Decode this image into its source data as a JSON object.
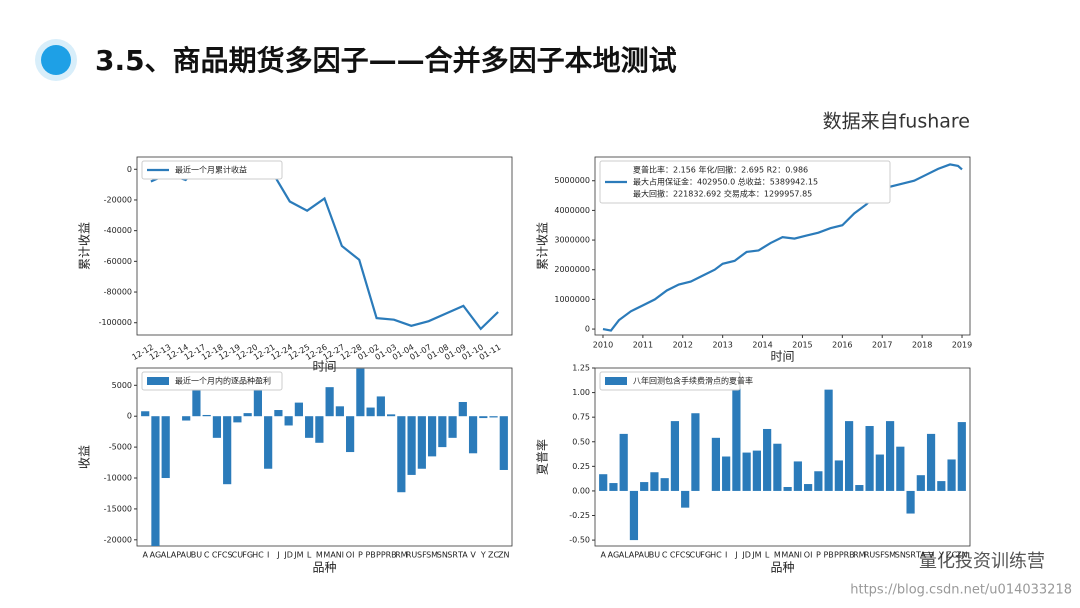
{
  "slide": {
    "title": "3.5、商品期货多因子——合并多因子本地测试",
    "source": "数据来自fushare",
    "watermark": "量化投资训练营",
    "url": "https://blog.csdn.net/u014033218"
  },
  "chart_data": [
    {
      "type": "line",
      "ylabel": "累计收益",
      "xlabel": "时间",
      "categories": [
        "12-12",
        "12-13",
        "12-14",
        "12-17",
        "12-18",
        "12-19",
        "12-20",
        "12-21",
        "12-24",
        "12-25",
        "12-26",
        "12-27",
        "12-28",
        "01-02",
        "01-03",
        "01-04",
        "01-07",
        "01-08",
        "01-09",
        "01-10",
        "01-11"
      ],
      "series": [
        {
          "name": "最近一个月累计收益",
          "color": "#2b7bba",
          "values": [
            -8000,
            -3000,
            -7000,
            5000,
            3000,
            0,
            0,
            -2000,
            -21000,
            -27000,
            -19000,
            -50000,
            -59000,
            -97000,
            -98000,
            -102000,
            -99000,
            -94000,
            -89000,
            -104000,
            -93000
          ]
        }
      ],
      "ylim": [
        -108000,
        8000
      ],
      "yticks": [
        -100000,
        -80000,
        -60000,
        -40000,
        -20000,
        0
      ]
    },
    {
      "type": "line",
      "ylabel": "累计收益",
      "xlabel": "时间",
      "legend_lines": [
        "夏普比率：2.156     年化/回撤：2.695     R2：0.986",
        "最大占用保证金：402950.0    总收益：5389942.15",
        "最大回撤：221832.692      交易成本：1299957.85"
      ],
      "x": [
        2010.0,
        2010.2,
        2010.4,
        2010.7,
        2011.0,
        2011.3,
        2011.6,
        2011.9,
        2012.2,
        2012.5,
        2012.8,
        2013.0,
        2013.3,
        2013.6,
        2013.9,
        2014.2,
        2014.5,
        2014.8,
        2015.1,
        2015.4,
        2015.7,
        2016.0,
        2016.3,
        2016.6,
        2016.9,
        2017.2,
        2017.5,
        2017.8,
        2018.1,
        2018.4,
        2018.7,
        2018.9,
        2019.0
      ],
      "series": [
        {
          "color": "#2b7bba",
          "values": [
            0,
            -50000,
            300000,
            600000,
            800000,
            1000000,
            1300000,
            1500000,
            1600000,
            1800000,
            2000000,
            2200000,
            2300000,
            2600000,
            2650000,
            2900000,
            3100000,
            3050000,
            3150000,
            3250000,
            3400000,
            3500000,
            3900000,
            4200000,
            4600000,
            4800000,
            4900000,
            5000000,
            5200000,
            5400000,
            5550000,
            5500000,
            5380000
          ]
        }
      ],
      "xlim": [
        2009.8,
        2019.2
      ],
      "xticks": [
        2010,
        2011,
        2012,
        2013,
        2014,
        2015,
        2016,
        2017,
        2018,
        2019
      ],
      "ylim": [
        -200000,
        5800000
      ],
      "yticks": [
        0,
        1000000,
        2000000,
        3000000,
        4000000,
        5000000
      ]
    },
    {
      "type": "bar",
      "ylabel": "收益",
      "xlabel": "品种",
      "categories": [
        "A",
        "AG",
        "AL",
        "AP",
        "AU",
        "BU",
        "C",
        "CF",
        "CS",
        "CU",
        "FG",
        "HC",
        "I",
        "J",
        "JD",
        "JM",
        "L",
        "M",
        "MA",
        "NI",
        "OI",
        "P",
        "PB",
        "PP",
        "RB",
        "RM",
        "RU",
        "SF",
        "SM",
        "SN",
        "SR",
        "TA",
        "V",
        "Y",
        "ZC",
        "ZN"
      ],
      "series": [
        {
          "name": "最近一个月内的逐品种盈利",
          "color": "#2b7bba",
          "values": [
            800,
            -21000,
            -10000,
            0,
            -700,
            5000,
            200,
            -3500,
            -11000,
            -1000,
            500,
            5000,
            -8500,
            1000,
            -1500,
            2200,
            -3500,
            -4300,
            4700,
            1600,
            -5800,
            7700,
            1400,
            3200,
            300,
            -12300,
            -9500,
            -8500,
            -6500,
            -5000,
            -3500,
            2300,
            -6000,
            -300,
            -200,
            -8700
          ]
        }
      ],
      "ylim": [
        -21000,
        7800
      ],
      "yticks": [
        -20000,
        -15000,
        -10000,
        -5000,
        0,
        5000
      ]
    },
    {
      "type": "bar",
      "ylabel": "夏普率",
      "xlabel": "品种",
      "categories": [
        "A",
        "AG",
        "AL",
        "AP",
        "AU",
        "BU",
        "C",
        "CF",
        "CS",
        "CU",
        "FG",
        "HC",
        "I",
        "J",
        "JD",
        "JM",
        "L",
        "M",
        "MA",
        "NI",
        "OI",
        "P",
        "PB",
        "PP",
        "RB",
        "RM",
        "RU",
        "SF",
        "SM",
        "SN",
        "SR",
        "TA",
        "V",
        "Y",
        "ZC",
        "ZN"
      ],
      "series": [
        {
          "name": "八年回测包含手续费滑点的夏普率",
          "color": "#2b7bba",
          "values": [
            0.17,
            0.08,
            0.58,
            -0.5,
            0.09,
            0.19,
            0.13,
            0.71,
            -0.17,
            0.79,
            0.0,
            0.54,
            0.35,
            1.1,
            0.39,
            0.41,
            0.63,
            0.48,
            0.04,
            0.3,
            0.07,
            0.2,
            1.03,
            0.31,
            0.71,
            0.06,
            0.66,
            0.37,
            0.71,
            0.45,
            -0.23,
            0.16,
            0.58,
            0.1,
            0.32,
            0.7
          ]
        }
      ],
      "ylim": [
        -0.56,
        1.25
      ],
      "yticks": [
        {
          "value": -0.5,
          "label": "-0.50"
        },
        {
          "value": -0.25,
          "label": "-0.25"
        },
        {
          "value": 0,
          "label": "0.00"
        },
        {
          "value": 0.25,
          "label": "0.25"
        },
        {
          "value": 0.5,
          "label": "0.50"
        },
        {
          "value": 0.75,
          "label": "0.75"
        },
        {
          "value": 1,
          "label": "1.00"
        },
        {
          "value": 1.25,
          "label": "1.25"
        }
      ]
    }
  ]
}
